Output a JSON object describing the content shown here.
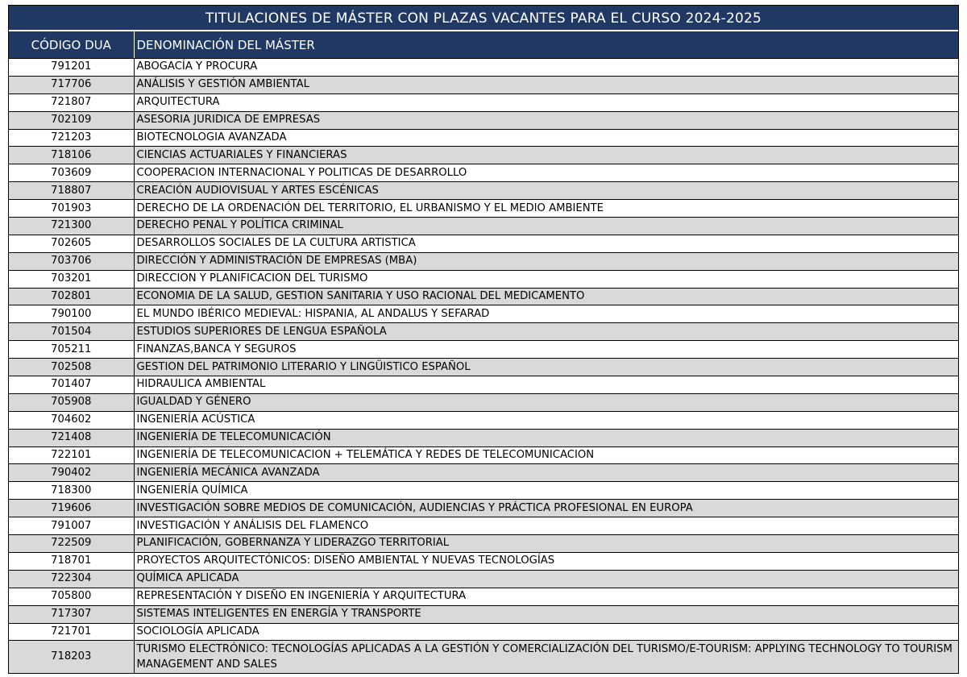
{
  "title": "TITULACIONES DE MÁSTER CON PLAZAS VACANTES PARA EL CURSO 2024-2025",
  "headers": {
    "code": "CÓDIGO DUA",
    "name": "DENOMINACIÓN DEL MÁSTER"
  },
  "rows": [
    {
      "code": "791201",
      "name": "ABOGACÍA Y PROCURA"
    },
    {
      "code": "717706",
      "name": "ANÁLISIS Y GESTIÓN AMBIENTAL"
    },
    {
      "code": "721807",
      "name": "ARQUITECTURA"
    },
    {
      "code": "702109",
      "name": "ASESORIA JURIDICA DE EMPRESAS"
    },
    {
      "code": "721203",
      "name": "BIOTECNOLOGIA AVANZADA"
    },
    {
      "code": "718106",
      "name": "CIENCIAS ACTUARIALES Y FINANCIERAS"
    },
    {
      "code": "703609",
      "name": "COOPERACION INTERNACIONAL Y POLITICAS DE DESARROLLO"
    },
    {
      "code": "718807",
      "name": "CREACIÓN AUDIOVISUAL Y ARTES ESCÉNICAS"
    },
    {
      "code": "701903",
      "name": "DERECHO DE LA ORDENACIÓN DEL TERRITORIO, EL URBANISMO Y EL MEDIO AMBIENTE"
    },
    {
      "code": "721300",
      "name": "DERECHO PENAL Y POLÍTICA CRIMINAL"
    },
    {
      "code": "702605",
      "name": "DESARROLLOS SOCIALES DE LA CULTURA ARTISTICA"
    },
    {
      "code": "703706",
      "name": "DIRECCIÓN Y ADMINISTRACIÓN DE EMPRESAS (MBA)"
    },
    {
      "code": "703201",
      "name": "DIRECCION Y PLANIFICACION DEL TURISMO"
    },
    {
      "code": "702801",
      "name": "ECONOMIA DE LA SALUD, GESTION SANITARIA Y USO RACIONAL DEL MEDICAMENTO"
    },
    {
      "code": "790100",
      "name": "EL MUNDO IBÉRICO MEDIEVAL: HISPANIA, AL ANDALUS Y SEFARAD"
    },
    {
      "code": "701504",
      "name": "ESTUDIOS SUPERIORES DE LENGUA ESPAÑOLA"
    },
    {
      "code": "705211",
      "name": "FINANZAS,BANCA Y SEGUROS"
    },
    {
      "code": "702508",
      "name": "GESTION DEL PATRIMONIO LITERARIO Y LINGÜISTICO ESPAÑOL"
    },
    {
      "code": "701407",
      "name": "HIDRAULICA AMBIENTAL"
    },
    {
      "code": "705908",
      "name": "IGUALDAD Y GÉNERO"
    },
    {
      "code": "704602",
      "name": "INGENIERÍA ACÚSTICA"
    },
    {
      "code": "721408",
      "name": "INGENIERÍA DE TELECOMUNICACIÓN"
    },
    {
      "code": "722101",
      "name": "INGENIERÍA DE TELECOMUNICACION + TELEMÁTICA Y REDES DE TELECOMUNICACION"
    },
    {
      "code": "790402",
      "name": "INGENIERÍA MECÁNICA AVANZADA"
    },
    {
      "code": "718300",
      "name": "INGENIERÍA QUÍMICA"
    },
    {
      "code": "719606",
      "name": "INVESTIGACIÓN SOBRE MEDIOS DE COMUNICACIÓN, AUDIENCIAS Y PRÁCTICA PROFESIONAL EN EUROPA"
    },
    {
      "code": "791007",
      "name": "INVESTIGACIÓN Y ANÁLISIS DEL FLAMENCO"
    },
    {
      "code": "722509",
      "name": "PLANIFICACIÓN, GOBERNANZA Y LIDERAZGO TERRITORIAL"
    },
    {
      "code": "718701",
      "name": "PROYECTOS ARQUITECTÓNICOS: DISEÑO AMBIENTAL Y NUEVAS TECNOLOGÍAS"
    },
    {
      "code": "722304",
      "name": "QUÍMICA APLICADA"
    },
    {
      "code": "705800",
      "name": "REPRESENTACIÓN Y DISEÑO EN INGENIERÍA Y ARQUITECTURA"
    },
    {
      "code": "717307",
      "name": "SISTEMAS INTELIGENTES EN ENERGÍA Y TRANSPORTE"
    },
    {
      "code": "721701",
      "name": "SOCIOLOGÍA APLICADA"
    },
    {
      "code": "718203",
      "name": "TURISMO ELECTRÓNICO: TECNOLOGÍAS APLICADAS A LA GESTIÓN Y COMERCIALIZACIÓN DEL TURISMO/E-TOURISM: APPLYING TECHNOLOGY TO TOURISM MANAGEMENT AND SALES"
    }
  ]
}
